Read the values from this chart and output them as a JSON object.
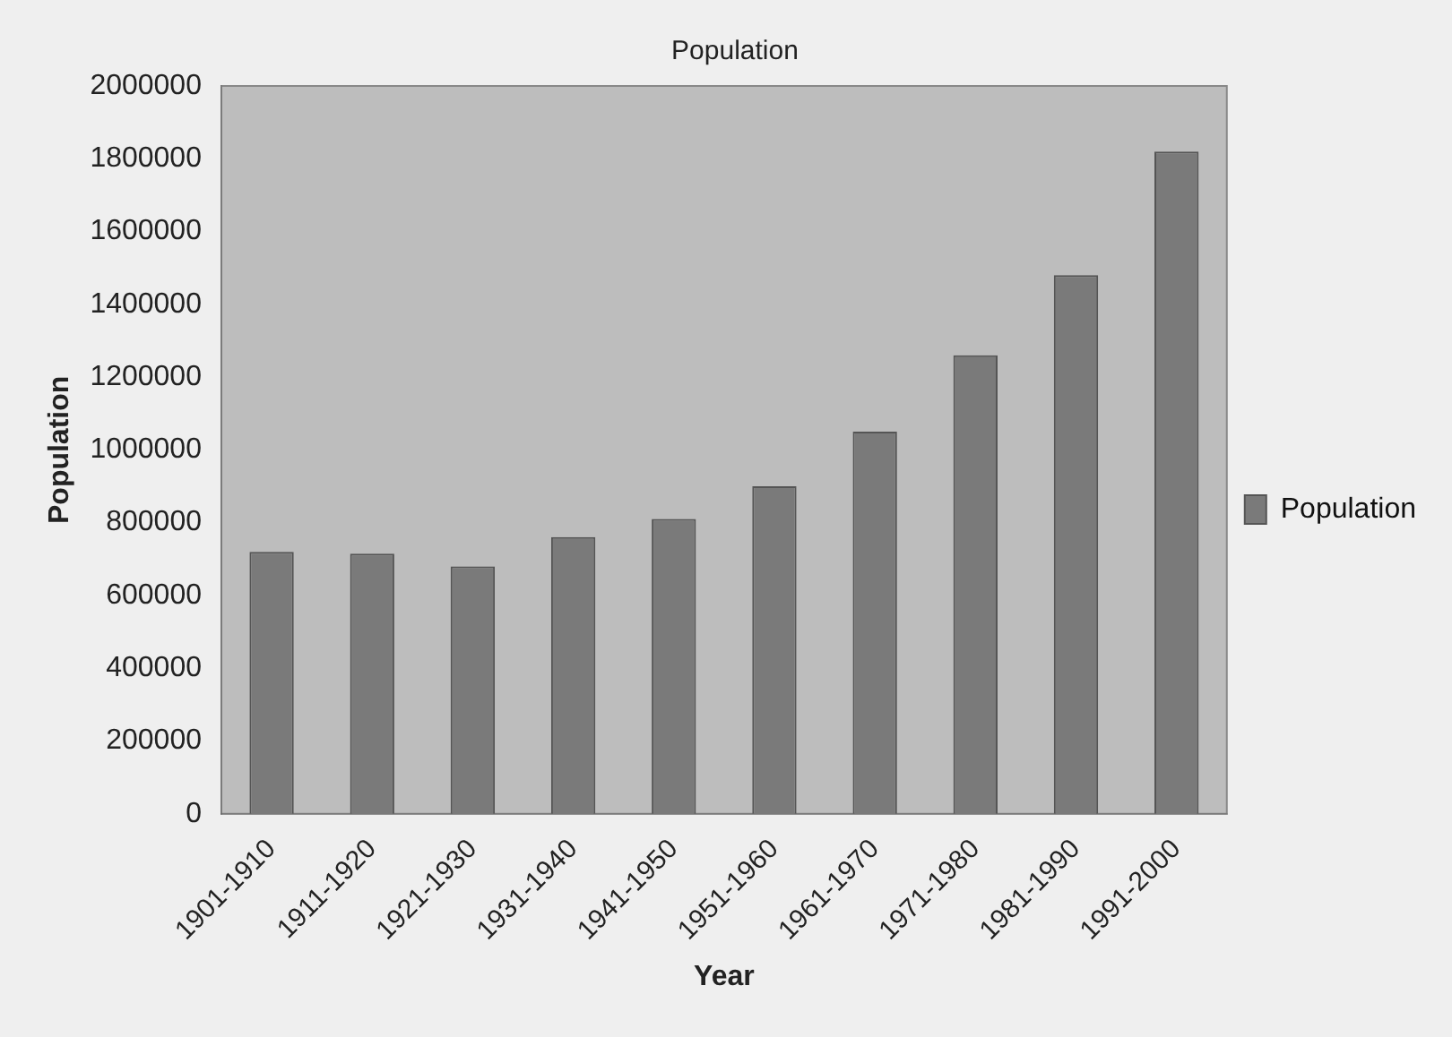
{
  "chart_data": {
    "type": "bar",
    "title": "Population",
    "xlabel": "Year",
    "ylabel": "Population",
    "categories": [
      "1901-1910",
      "1911-1920",
      "1921-1930",
      "1931-1940",
      "1941-1950",
      "1951-1960",
      "1961-1970",
      "1971-1980",
      "1981-1990",
      "1991-2000"
    ],
    "series": [
      {
        "name": "Population",
        "color": "#7a7a7a",
        "values": [
          720000,
          715000,
          680000,
          760000,
          810000,
          900000,
          1050000,
          1260000,
          1480000,
          1820000
        ]
      }
    ],
    "ylim": [
      0,
      2000000
    ],
    "yticks": [
      0,
      200000,
      400000,
      600000,
      800000,
      1000000,
      1200000,
      1400000,
      1600000,
      1800000,
      2000000
    ],
    "grid": false,
    "legend": "right"
  }
}
